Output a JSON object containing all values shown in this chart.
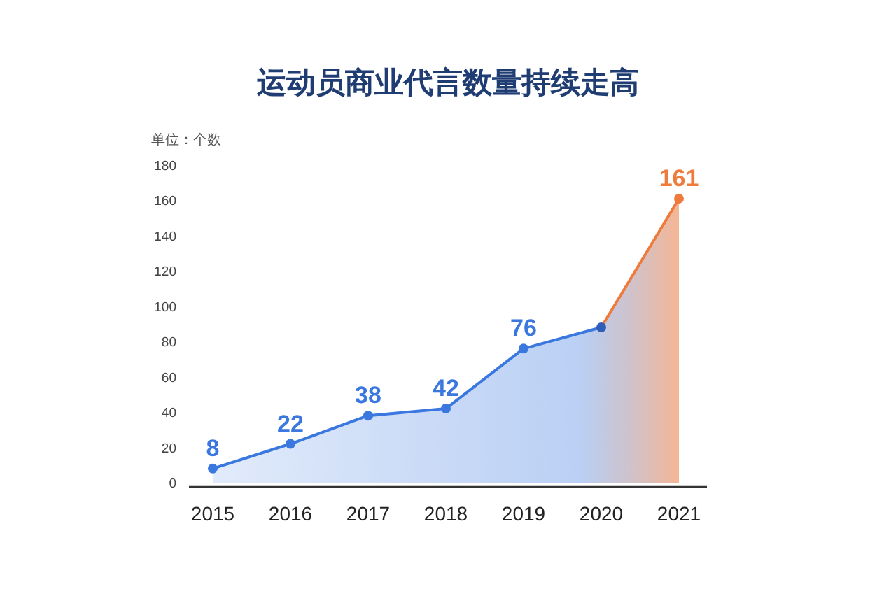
{
  "chart_data": {
    "type": "area",
    "title": "运动员商业代言数量持续走高",
    "ylabel": "单位：个数",
    "categories": [
      "2015",
      "2016",
      "2017",
      "2018",
      "2019",
      "2020",
      "2021"
    ],
    "series": [
      {
        "color": "#3a78e0",
        "colors": [
          "#3a78e0",
          "#3a78e0",
          "#3a78e0",
          "#3a78e0",
          "#3a78e0",
          "#2f5db8",
          "#ee7a3c"
        ],
        "values": [
          8,
          22,
          38,
          42,
          76,
          88,
          161
        ]
      }
    ],
    "value_labels": [
      "8",
      "22",
      "38",
      "42",
      "76",
      null,
      "161"
    ],
    "ylim": [
      0,
      180
    ],
    "yticks": [
      0,
      20,
      40,
      60,
      80,
      100,
      120,
      140,
      160,
      180
    ],
    "marker": "circle",
    "grid": false
  }
}
